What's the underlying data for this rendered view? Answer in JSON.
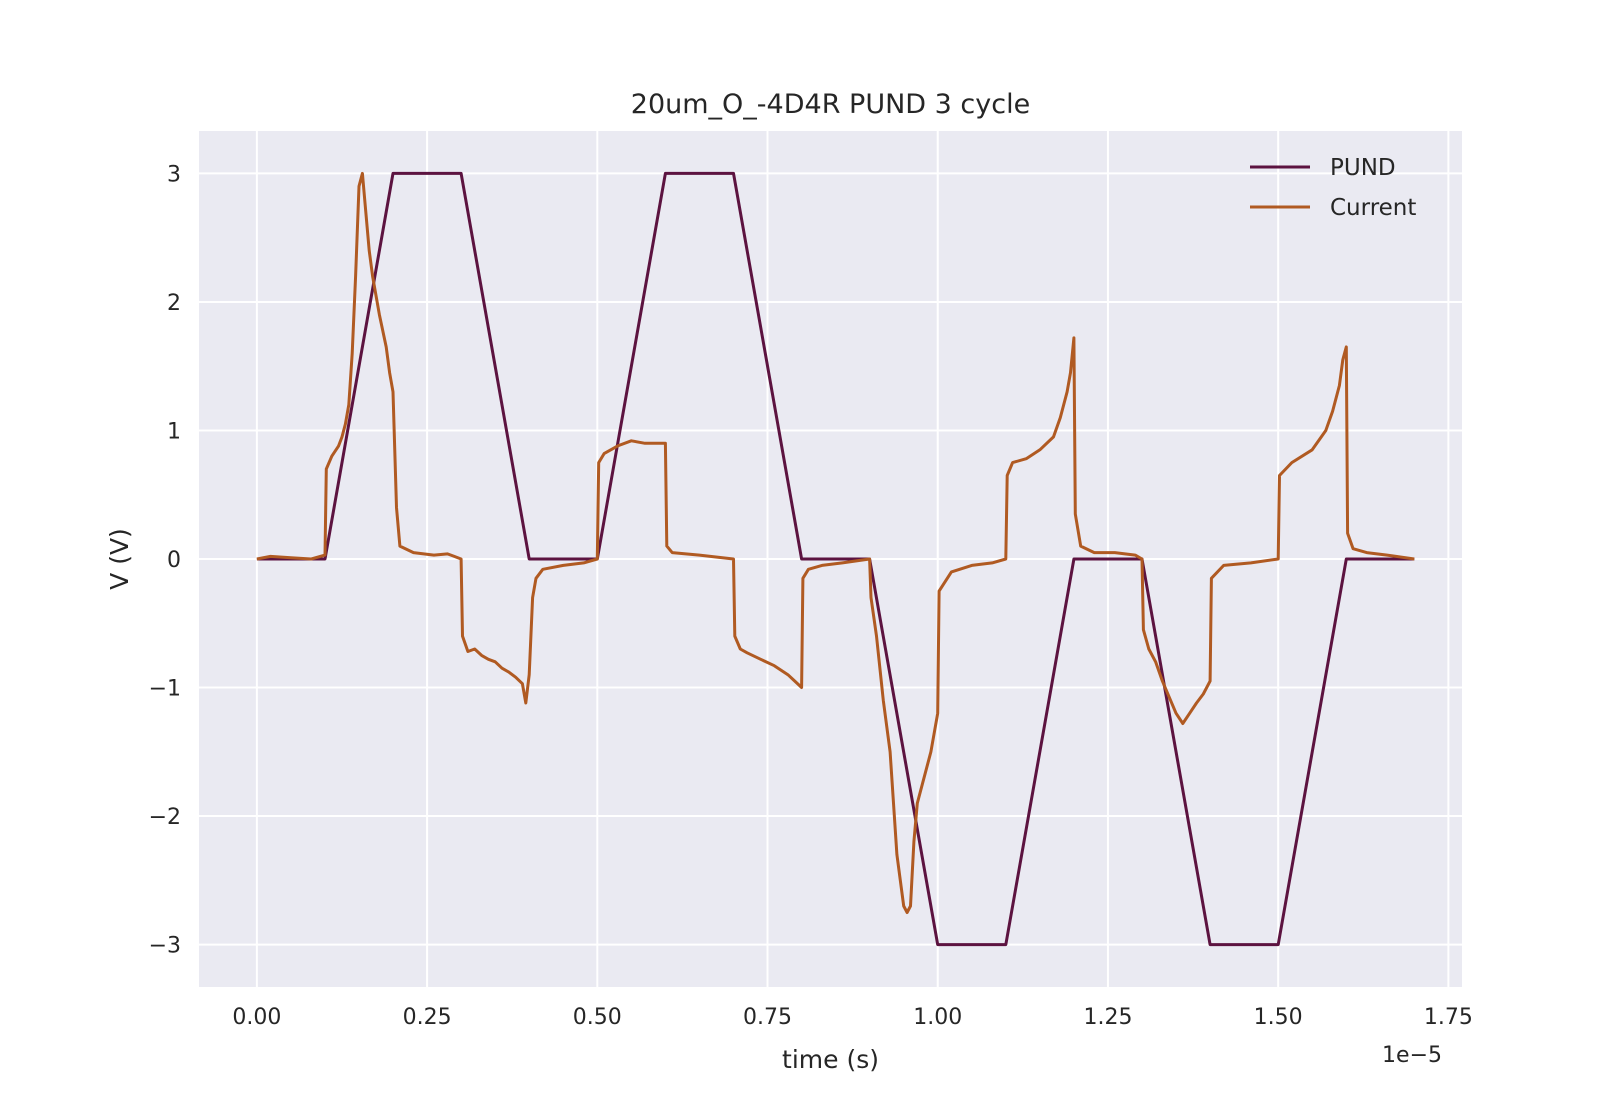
{
  "chart_data": {
    "type": "line",
    "title": "20um_O_-4D4R PUND 3 cycle",
    "xlabel": "time (s)",
    "ylabel": "V (V)",
    "x_offset_label": "1e−5",
    "xlim": [
      -0.085,
      1.77
    ],
    "ylim": [
      -3.33,
      3.33
    ],
    "xticks": [
      0.0,
      0.25,
      0.5,
      0.75,
      1.0,
      1.25,
      1.5,
      1.75
    ],
    "xtick_labels": [
      "0.00",
      "0.25",
      "0.50",
      "0.75",
      "1.00",
      "1.25",
      "1.50",
      "1.75"
    ],
    "yticks": [
      3,
      2,
      1,
      0,
      -1,
      -2,
      -3
    ],
    "ytick_labels": [
      "3",
      "2",
      "1",
      "0",
      "−1",
      "−2",
      "−3"
    ],
    "grid": true,
    "background": "#EAEAF2",
    "legend_position": "top-right",
    "series": [
      {
        "name": "PUND",
        "color": "#5C1340",
        "x": [
          0.0,
          0.1,
          0.2,
          0.3,
          0.4,
          0.5,
          0.6,
          0.7,
          0.8,
          0.9,
          1.0,
          1.1,
          1.2,
          1.3,
          1.4,
          1.5,
          1.6,
          1.7
        ],
        "y": [
          0,
          0,
          3,
          3,
          0,
          0,
          3,
          3,
          0,
          0,
          -3,
          -3,
          0,
          0,
          -3,
          -3,
          0,
          0
        ]
      },
      {
        "name": "Current",
        "color": "#B05A22",
        "x": [
          0.0,
          0.02,
          0.05,
          0.08,
          0.1,
          0.102,
          0.11,
          0.12,
          0.125,
          0.13,
          0.135,
          0.14,
          0.145,
          0.15,
          0.155,
          0.16,
          0.165,
          0.17,
          0.18,
          0.19,
          0.195,
          0.2,
          0.205,
          0.21,
          0.23,
          0.26,
          0.28,
          0.29,
          0.3,
          0.302,
          0.31,
          0.32,
          0.33,
          0.34,
          0.35,
          0.36,
          0.37,
          0.38,
          0.39,
          0.395,
          0.4,
          0.405,
          0.41,
          0.42,
          0.45,
          0.48,
          0.5,
          0.502,
          0.51,
          0.53,
          0.55,
          0.57,
          0.6,
          0.6,
          0.602,
          0.61,
          0.65,
          0.7,
          0.702,
          0.71,
          0.72,
          0.74,
          0.76,
          0.78,
          0.79,
          0.8,
          0.802,
          0.81,
          0.83,
          0.86,
          0.9,
          0.902,
          0.91,
          0.92,
          0.93,
          0.935,
          0.94,
          0.945,
          0.95,
          0.955,
          0.96,
          0.965,
          0.97,
          0.98,
          0.99,
          1.0,
          1.002,
          1.02,
          1.05,
          1.08,
          1.1,
          1.102,
          1.11,
          1.13,
          1.15,
          1.17,
          1.18,
          1.19,
          1.195,
          1.2,
          1.202,
          1.21,
          1.23,
          1.26,
          1.29,
          1.3,
          1.302,
          1.31,
          1.32,
          1.33,
          1.35,
          1.36,
          1.37,
          1.38,
          1.39,
          1.4,
          1.402,
          1.42,
          1.46,
          1.5,
          1.502,
          1.52,
          1.55,
          1.57,
          1.58,
          1.59,
          1.595,
          1.6,
          1.602,
          1.61,
          1.63,
          1.66,
          1.7
        ],
        "y": [
          0.0,
          0.02,
          0.01,
          0.0,
          0.03,
          0.7,
          0.8,
          0.88,
          0.95,
          1.05,
          1.2,
          1.6,
          2.2,
          2.9,
          3.0,
          2.7,
          2.4,
          2.2,
          1.9,
          1.65,
          1.45,
          1.3,
          0.4,
          0.1,
          0.05,
          0.03,
          0.04,
          0.02,
          0.0,
          -0.6,
          -0.72,
          -0.7,
          -0.75,
          -0.78,
          -0.8,
          -0.85,
          -0.88,
          -0.92,
          -0.97,
          -1.12,
          -0.9,
          -0.3,
          -0.15,
          -0.08,
          -0.05,
          -0.03,
          0.0,
          0.75,
          0.82,
          0.88,
          0.92,
          0.9,
          0.9,
          0.9,
          0.1,
          0.05,
          0.03,
          0.0,
          -0.6,
          -0.7,
          -0.73,
          -0.78,
          -0.83,
          -0.9,
          -0.95,
          -1.0,
          -0.15,
          -0.08,
          -0.05,
          -0.03,
          0.0,
          -0.3,
          -0.6,
          -1.1,
          -1.5,
          -1.9,
          -2.3,
          -2.5,
          -2.7,
          -2.75,
          -2.7,
          -2.2,
          -1.9,
          -1.7,
          -1.5,
          -1.2,
          -0.25,
          -0.1,
          -0.05,
          -0.03,
          0.0,
          0.65,
          0.75,
          0.78,
          0.85,
          0.95,
          1.1,
          1.3,
          1.45,
          1.72,
          0.35,
          0.1,
          0.05,
          0.05,
          0.03,
          0.0,
          -0.55,
          -0.7,
          -0.8,
          -0.95,
          -1.2,
          -1.28,
          -1.2,
          -1.12,
          -1.05,
          -0.95,
          -0.15,
          -0.05,
          -0.03,
          0.0,
          0.65,
          0.75,
          0.85,
          1.0,
          1.15,
          1.35,
          1.55,
          1.65,
          0.2,
          0.08,
          0.05,
          0.03,
          0.0
        ]
      }
    ]
  }
}
